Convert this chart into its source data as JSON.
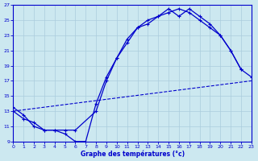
{
  "title": "Graphe des températures (°c)",
  "background_color": "#cce8f0",
  "grid_color": "#aaccdd",
  "line_color": "#0000cc",
  "xlim": [
    0,
    23
  ],
  "ylim": [
    9,
    27
  ],
  "xticks": [
    0,
    1,
    2,
    3,
    4,
    5,
    6,
    7,
    8,
    9,
    10,
    11,
    12,
    13,
    14,
    15,
    16,
    17,
    18,
    19,
    20,
    21,
    22,
    23
  ],
  "yticks": [
    9,
    11,
    13,
    15,
    17,
    19,
    21,
    23,
    25,
    27
  ],
  "curve1_x": [
    0,
    1,
    2,
    3,
    4,
    5,
    6,
    7,
    8,
    9,
    10,
    11,
    12,
    13,
    14,
    15,
    16,
    17,
    18,
    19,
    20,
    21,
    22,
    23
  ],
  "curve1_y": [
    13,
    12,
    11.5,
    10.5,
    10.5,
    10,
    9,
    9,
    14,
    17.5,
    20,
    22,
    24,
    24.5,
    25.5,
    26,
    26.5,
    26,
    25,
    24,
    23,
    21,
    18.5,
    17.5
  ],
  "curve2_x": [
    0,
    1,
    2,
    3,
    4,
    5,
    6,
    8,
    9,
    10,
    11,
    12,
    13,
    14,
    15,
    16,
    17,
    18,
    19,
    20,
    21,
    22
  ],
  "curve2_y": [
    13.5,
    12.5,
    11,
    10.5,
    10.5,
    10.5,
    10.5,
    13,
    17,
    20,
    22.5,
    24,
    25,
    25.5,
    26.5,
    25.5,
    26.5,
    25.5,
    24.5,
    23,
    21,
    18.5
  ],
  "curve3_x": [
    0,
    23
  ],
  "curve3_y": [
    13,
    17
  ]
}
